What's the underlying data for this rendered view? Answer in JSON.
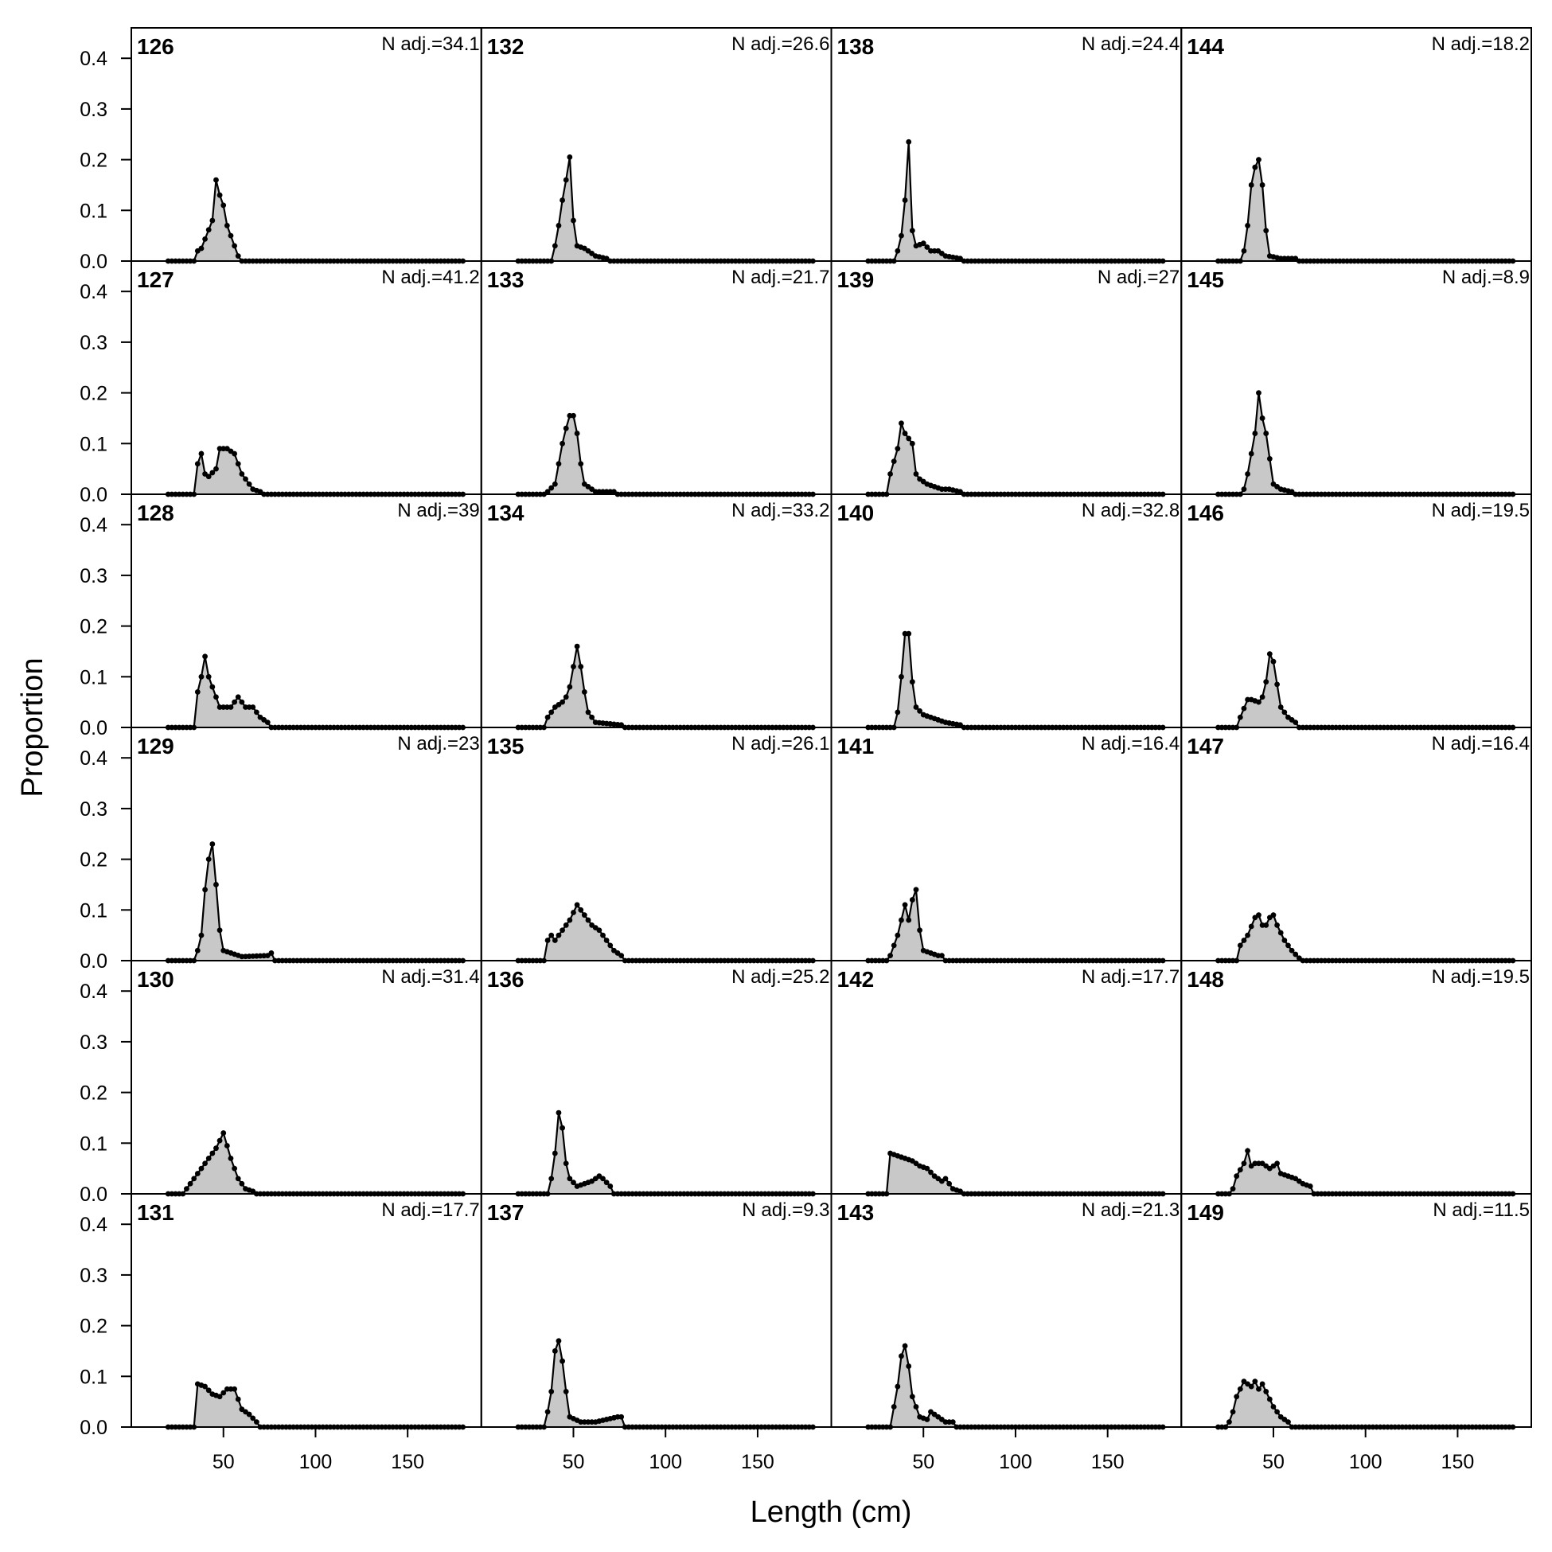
{
  "chart_data": {
    "type": "area",
    "xlabel": "Length (cm)",
    "ylabel": "Proportion",
    "xlim": [
      0,
      190
    ],
    "ylim": [
      0,
      0.46
    ],
    "x_ticks": [
      50,
      100,
      150
    ],
    "y_ticks": [
      0.0,
      0.1,
      0.2,
      0.3,
      0.4
    ],
    "x_tick_labels": [
      "50",
      "100",
      "150"
    ],
    "y_tick_labels": [
      "0.0",
      "0.1",
      "0.2",
      "0.3",
      "0.4"
    ],
    "bin_range": [
      20,
      180
    ],
    "bin_width": 2,
    "colors": {
      "fill": "#c8c8c8",
      "line": "#000000",
      "point": "#000000"
    },
    "layout": "grid of panels, 6 rows x 4 columns, ordered down each column",
    "panels": [
      {
        "id": "126",
        "nadj": "N adj.=34.1",
        "peaks": [
          [
            44,
            0.08
          ],
          [
            46,
            0.16
          ],
          [
            48,
            0.13
          ],
          [
            50,
            0.11
          ],
          [
            52,
            0.07
          ],
          [
            36,
            0.02
          ],
          [
            38,
            0.025
          ],
          [
            56,
            0.03
          ],
          [
            58,
            0.01
          ]
        ]
      },
      {
        "id": "127",
        "nadj": "N adj.=41.2",
        "peaks": [
          [
            36,
            0.06
          ],
          [
            38,
            0.08
          ],
          [
            40,
            0.04
          ],
          [
            42,
            0.035
          ],
          [
            46,
            0.05
          ],
          [
            48,
            0.09
          ],
          [
            52,
            0.09
          ],
          [
            56,
            0.08
          ],
          [
            60,
            0.04
          ],
          [
            64,
            0.02
          ],
          [
            66,
            0.01
          ],
          [
            70,
            0.005
          ]
        ]
      },
      {
        "id": "128",
        "nadj": "N adj.=39",
        "peaks": [
          [
            36,
            0.07
          ],
          [
            38,
            0.1
          ],
          [
            40,
            0.14
          ],
          [
            42,
            0.1
          ],
          [
            44,
            0.08
          ],
          [
            48,
            0.04
          ],
          [
            54,
            0.04
          ],
          [
            58,
            0.06
          ],
          [
            62,
            0.04
          ],
          [
            66,
            0.04
          ],
          [
            70,
            0.02
          ],
          [
            74,
            0.01
          ]
        ]
      },
      {
        "id": "129",
        "nadj": "N adj.=23",
        "peaks": [
          [
            36,
            0.02
          ],
          [
            38,
            0.05
          ],
          [
            40,
            0.14
          ],
          [
            42,
            0.2
          ],
          [
            44,
            0.23
          ],
          [
            46,
            0.15
          ],
          [
            48,
            0.06
          ],
          [
            50,
            0.02
          ],
          [
            60,
            0.008
          ],
          [
            74,
            0.01
          ],
          [
            76,
            0.015
          ]
        ]
      },
      {
        "id": "130",
        "nadj": "N adj.=31.4",
        "peaks": [
          [
            30,
            0.01
          ],
          [
            34,
            0.03
          ],
          [
            38,
            0.05
          ],
          [
            42,
            0.07
          ],
          [
            46,
            0.09
          ],
          [
            50,
            0.12
          ],
          [
            54,
            0.07
          ],
          [
            58,
            0.03
          ],
          [
            62,
            0.01
          ],
          [
            66,
            0.005
          ]
        ]
      },
      {
        "id": "131",
        "nadj": "N adj.=17.7",
        "peaks": [
          [
            36,
            0.085
          ],
          [
            40,
            0.08
          ],
          [
            44,
            0.065
          ],
          [
            48,
            0.06
          ],
          [
            52,
            0.075
          ],
          [
            56,
            0.075
          ],
          [
            60,
            0.035
          ],
          [
            64,
            0.025
          ],
          [
            68,
            0.01
          ]
        ]
      },
      {
        "id": "132",
        "nadj": "N adj.=26.6",
        "peaks": [
          [
            40,
            0.03
          ],
          [
            42,
            0.07
          ],
          [
            44,
            0.12
          ],
          [
            46,
            0.16
          ],
          [
            48,
            0.205
          ],
          [
            50,
            0.08
          ],
          [
            52,
            0.03
          ],
          [
            56,
            0.025
          ],
          [
            62,
            0.01
          ],
          [
            68,
            0.005
          ]
        ]
      },
      {
        "id": "133",
        "nadj": "N adj.=21.7",
        "peaks": [
          [
            36,
            0.005
          ],
          [
            40,
            0.02
          ],
          [
            42,
            0.06
          ],
          [
            44,
            0.1
          ],
          [
            46,
            0.13
          ],
          [
            48,
            0.155
          ],
          [
            50,
            0.155
          ],
          [
            52,
            0.12
          ],
          [
            54,
            0.06
          ],
          [
            56,
            0.02
          ],
          [
            62,
            0.005
          ],
          [
            72,
            0.005
          ]
        ]
      },
      {
        "id": "134",
        "nadj": "N adj.=33.2",
        "peaks": [
          [
            36,
            0.02
          ],
          [
            40,
            0.04
          ],
          [
            44,
            0.05
          ],
          [
            46,
            0.06
          ],
          [
            48,
            0.08
          ],
          [
            50,
            0.12
          ],
          [
            52,
            0.16
          ],
          [
            54,
            0.12
          ],
          [
            56,
            0.07
          ],
          [
            58,
            0.03
          ],
          [
            62,
            0.01
          ],
          [
            76,
            0.005
          ]
        ]
      },
      {
        "id": "135",
        "nadj": "N adj.=26.1",
        "peaks": [
          [
            36,
            0.04
          ],
          [
            38,
            0.05
          ],
          [
            40,
            0.04
          ],
          [
            44,
            0.06
          ],
          [
            48,
            0.08
          ],
          [
            52,
            0.11
          ],
          [
            56,
            0.09
          ],
          [
            60,
            0.07
          ],
          [
            64,
            0.06
          ],
          [
            68,
            0.04
          ],
          [
            72,
            0.02
          ],
          [
            76,
            0.01
          ]
        ]
      },
      {
        "id": "136",
        "nadj": "N adj.=25.2",
        "peaks": [
          [
            38,
            0.03
          ],
          [
            40,
            0.08
          ],
          [
            42,
            0.16
          ],
          [
            44,
            0.13
          ],
          [
            46,
            0.06
          ],
          [
            48,
            0.03
          ],
          [
            52,
            0.015
          ],
          [
            56,
            0.02
          ],
          [
            60,
            0.025
          ],
          [
            64,
            0.035
          ],
          [
            66,
            0.03
          ],
          [
            70,
            0.015
          ]
        ]
      },
      {
        "id": "137",
        "nadj": "N adj.=9.3",
        "peaks": [
          [
            36,
            0.03
          ],
          [
            38,
            0.07
          ],
          [
            40,
            0.15
          ],
          [
            42,
            0.17
          ],
          [
            44,
            0.13
          ],
          [
            46,
            0.07
          ],
          [
            48,
            0.02
          ],
          [
            54,
            0.01
          ],
          [
            62,
            0.01
          ],
          [
            74,
            0.02
          ],
          [
            76,
            0.02
          ]
        ]
      },
      {
        "id": "138",
        "nadj": "N adj.=24.4",
        "peaks": [
          [
            36,
            0.02
          ],
          [
            38,
            0.05
          ],
          [
            40,
            0.12
          ],
          [
            42,
            0.235
          ],
          [
            44,
            0.06
          ],
          [
            46,
            0.03
          ],
          [
            50,
            0.035
          ],
          [
            54,
            0.02
          ],
          [
            58,
            0.02
          ],
          [
            62,
            0.01
          ],
          [
            70,
            0.005
          ]
        ]
      },
      {
        "id": "139",
        "nadj": "N adj.=27",
        "peaks": [
          [
            32,
            0.04
          ],
          [
            36,
            0.09
          ],
          [
            38,
            0.14
          ],
          [
            40,
            0.12
          ],
          [
            44,
            0.1
          ],
          [
            46,
            0.04
          ],
          [
            48,
            0.03
          ],
          [
            52,
            0.02
          ],
          [
            56,
            0.015
          ],
          [
            60,
            0.01
          ],
          [
            64,
            0.01
          ],
          [
            70,
            0.005
          ]
        ]
      },
      {
        "id": "140",
        "nadj": "N adj.=32.8",
        "peaks": [
          [
            36,
            0.03
          ],
          [
            38,
            0.1
          ],
          [
            40,
            0.185
          ],
          [
            42,
            0.185
          ],
          [
            44,
            0.09
          ],
          [
            46,
            0.04
          ],
          [
            50,
            0.025
          ],
          [
            54,
            0.02
          ],
          [
            58,
            0.015
          ],
          [
            62,
            0.01
          ],
          [
            70,
            0.005
          ]
        ]
      },
      {
        "id": "141",
        "nadj": "N adj.=16.4",
        "peaks": [
          [
            32,
            0.01
          ],
          [
            36,
            0.05
          ],
          [
            38,
            0.08
          ],
          [
            40,
            0.11
          ],
          [
            42,
            0.08
          ],
          [
            44,
            0.12
          ],
          [
            46,
            0.14
          ],
          [
            48,
            0.06
          ],
          [
            50,
            0.02
          ],
          [
            58,
            0.01
          ],
          [
            60,
            0.01
          ]
        ]
      },
      {
        "id": "142",
        "nadj": "N adj.=17.7",
        "peaks": [
          [
            32,
            0.08
          ],
          [
            36,
            0.075
          ],
          [
            40,
            0.07
          ],
          [
            44,
            0.065
          ],
          [
            48,
            0.055
          ],
          [
            52,
            0.05
          ],
          [
            56,
            0.035
          ],
          [
            60,
            0.025
          ],
          [
            62,
            0.03
          ],
          [
            66,
            0.01
          ],
          [
            70,
            0.005
          ]
        ]
      },
      {
        "id": "143",
        "nadj": "N adj.=21.3",
        "peaks": [
          [
            34,
            0.04
          ],
          [
            36,
            0.08
          ],
          [
            38,
            0.14
          ],
          [
            40,
            0.16
          ],
          [
            42,
            0.12
          ],
          [
            44,
            0.06
          ],
          [
            48,
            0.02
          ],
          [
            52,
            0.015
          ],
          [
            54,
            0.03
          ],
          [
            58,
            0.02
          ],
          [
            62,
            0.01
          ],
          [
            66,
            0.01
          ]
        ]
      },
      {
        "id": "144",
        "nadj": "N adj.=18.2",
        "peaks": [
          [
            34,
            0.02
          ],
          [
            36,
            0.07
          ],
          [
            38,
            0.15
          ],
          [
            40,
            0.185
          ],
          [
            42,
            0.2
          ],
          [
            44,
            0.15
          ],
          [
            46,
            0.06
          ],
          [
            48,
            0.01
          ],
          [
            54,
            0.005
          ],
          [
            62,
            0.005
          ]
        ]
      },
      {
        "id": "145",
        "nadj": "N adj.=8.9",
        "peaks": [
          [
            34,
            0.01
          ],
          [
            36,
            0.04
          ],
          [
            38,
            0.08
          ],
          [
            40,
            0.12
          ],
          [
            42,
            0.2
          ],
          [
            44,
            0.15
          ],
          [
            46,
            0.12
          ],
          [
            48,
            0.07
          ],
          [
            50,
            0.02
          ],
          [
            54,
            0.01
          ],
          [
            60,
            0.005
          ]
        ]
      },
      {
        "id": "146",
        "nadj": "N adj.=19.5",
        "peaks": [
          [
            32,
            0.02
          ],
          [
            36,
            0.055
          ],
          [
            38,
            0.055
          ],
          [
            42,
            0.05
          ],
          [
            44,
            0.06
          ],
          [
            46,
            0.09
          ],
          [
            48,
            0.145
          ],
          [
            50,
            0.13
          ],
          [
            52,
            0.085
          ],
          [
            54,
            0.04
          ],
          [
            58,
            0.02
          ],
          [
            62,
            0.01
          ]
        ]
      },
      {
        "id": "147",
        "nadj": "N adj.=16.4",
        "peaks": [
          [
            32,
            0.03
          ],
          [
            36,
            0.05
          ],
          [
            40,
            0.085
          ],
          [
            42,
            0.09
          ],
          [
            44,
            0.07
          ],
          [
            46,
            0.07
          ],
          [
            48,
            0.085
          ],
          [
            50,
            0.09
          ],
          [
            52,
            0.07
          ],
          [
            56,
            0.04
          ],
          [
            60,
            0.02
          ],
          [
            64,
            0.005
          ]
        ]
      },
      {
        "id": "148",
        "nadj": "N adj.=19.5",
        "peaks": [
          [
            28,
            0.01
          ],
          [
            30,
            0.035
          ],
          [
            34,
            0.06
          ],
          [
            36,
            0.085
          ],
          [
            38,
            0.055
          ],
          [
            40,
            0.06
          ],
          [
            44,
            0.06
          ],
          [
            48,
            0.05
          ],
          [
            52,
            0.06
          ],
          [
            54,
            0.04
          ],
          [
            58,
            0.035
          ],
          [
            62,
            0.03
          ],
          [
            66,
            0.02
          ],
          [
            70,
            0.015
          ]
        ]
      },
      {
        "id": "149",
        "nadj": "N adj.=11.5",
        "peaks": [
          [
            26,
            0.01
          ],
          [
            28,
            0.03
          ],
          [
            30,
            0.06
          ],
          [
            34,
            0.09
          ],
          [
            36,
            0.085
          ],
          [
            38,
            0.08
          ],
          [
            40,
            0.09
          ],
          [
            42,
            0.075
          ],
          [
            44,
            0.085
          ],
          [
            46,
            0.07
          ],
          [
            50,
            0.04
          ],
          [
            54,
            0.02
          ],
          [
            58,
            0.01
          ]
        ]
      }
    ]
  }
}
